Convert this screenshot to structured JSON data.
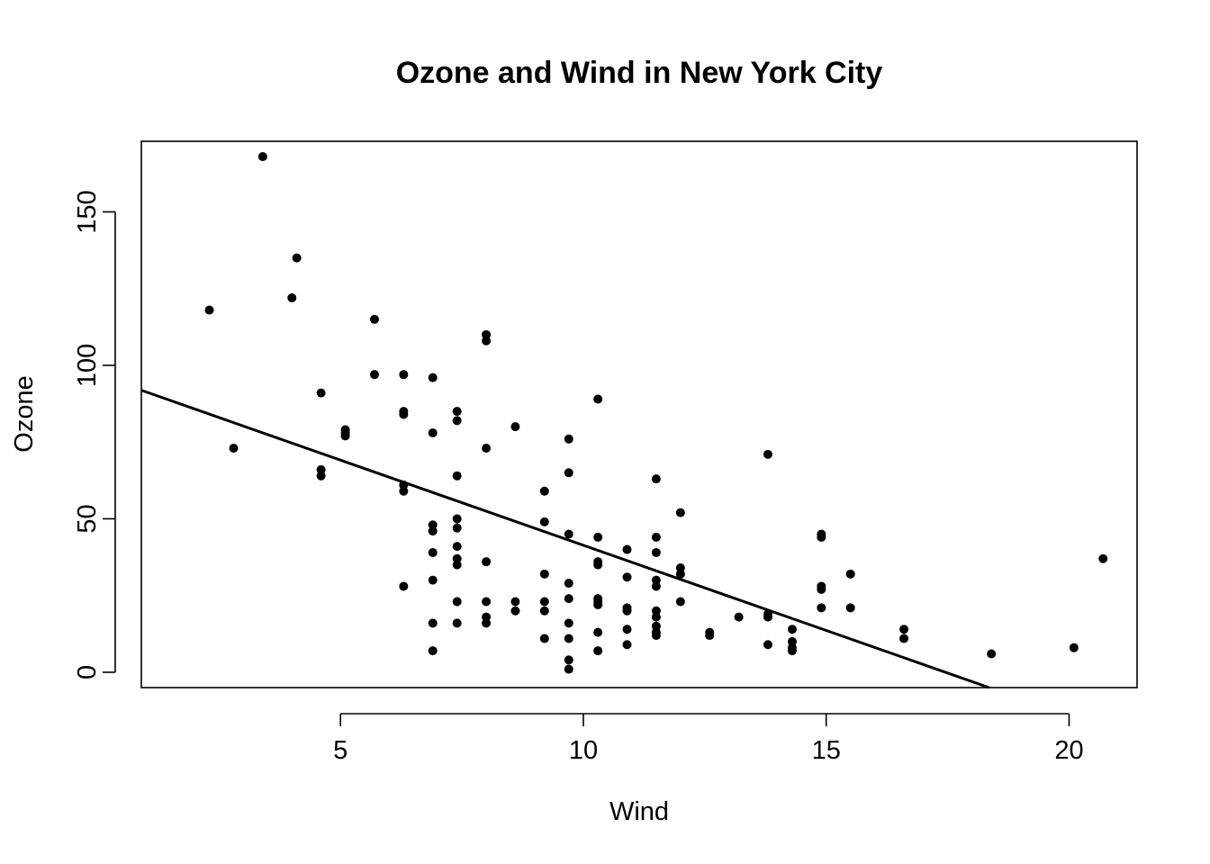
{
  "chart_data": {
    "type": "scatter",
    "title": "Ozone and Wind in New York City",
    "xlabel": "Wind",
    "ylabel": "Ozone",
    "xlim": [
      0.9,
      21.4
    ],
    "ylim": [
      -5,
      173
    ],
    "xticks": [
      5,
      10,
      15,
      20
    ],
    "yticks": [
      0,
      50,
      100,
      150
    ],
    "grid": false,
    "legend": "none",
    "marker_color": "#000000",
    "points": [
      [
        2.3,
        118
      ],
      [
        2.8,
        73
      ],
      [
        3.4,
        168
      ],
      [
        4.0,
        122
      ],
      [
        4.1,
        135
      ],
      [
        4.6,
        91
      ],
      [
        4.6,
        66
      ],
      [
        4.6,
        64
      ],
      [
        5.1,
        79
      ],
      [
        5.1,
        78
      ],
      [
        5.1,
        77
      ],
      [
        5.7,
        115
      ],
      [
        5.7,
        97
      ],
      [
        6.3,
        97
      ],
      [
        6.3,
        85
      ],
      [
        6.3,
        84
      ],
      [
        6.3,
        61
      ],
      [
        6.3,
        59
      ],
      [
        6.3,
        28
      ],
      [
        6.9,
        96
      ],
      [
        6.9,
        78
      ],
      [
        6.9,
        48
      ],
      [
        6.9,
        46
      ],
      [
        6.9,
        39
      ],
      [
        6.9,
        30
      ],
      [
        6.9,
        16
      ],
      [
        6.9,
        7
      ],
      [
        7.4,
        85
      ],
      [
        7.4,
        82
      ],
      [
        7.4,
        64
      ],
      [
        7.4,
        50
      ],
      [
        7.4,
        47
      ],
      [
        7.4,
        41
      ],
      [
        7.4,
        37
      ],
      [
        7.4,
        35
      ],
      [
        7.4,
        23
      ],
      [
        7.4,
        16
      ],
      [
        8.0,
        110
      ],
      [
        8.0,
        108
      ],
      [
        8.0,
        73
      ],
      [
        8.0,
        36
      ],
      [
        8.0,
        23
      ],
      [
        8.0,
        18
      ],
      [
        8.0,
        16
      ],
      [
        8.6,
        80
      ],
      [
        8.6,
        23
      ],
      [
        8.6,
        20
      ],
      [
        9.2,
        59
      ],
      [
        9.2,
        49
      ],
      [
        9.2,
        32
      ],
      [
        9.2,
        23
      ],
      [
        9.2,
        20
      ],
      [
        9.2,
        11
      ],
      [
        9.7,
        76
      ],
      [
        9.7,
        65
      ],
      [
        9.7,
        45
      ],
      [
        9.7,
        29
      ],
      [
        9.7,
        24
      ],
      [
        9.7,
        16
      ],
      [
        9.7,
        11
      ],
      [
        9.7,
        4
      ],
      [
        9.7,
        1
      ],
      [
        10.3,
        89
      ],
      [
        10.3,
        44
      ],
      [
        10.3,
        36
      ],
      [
        10.3,
        35
      ],
      [
        10.3,
        24
      ],
      [
        10.3,
        23
      ],
      [
        10.3,
        22
      ],
      [
        10.3,
        13
      ],
      [
        10.3,
        7
      ],
      [
        10.9,
        40
      ],
      [
        10.9,
        31
      ],
      [
        10.9,
        21
      ],
      [
        10.9,
        20
      ],
      [
        10.9,
        14
      ],
      [
        10.9,
        9
      ],
      [
        11.5,
        63
      ],
      [
        11.5,
        44
      ],
      [
        11.5,
        39
      ],
      [
        11.5,
        30
      ],
      [
        11.5,
        28
      ],
      [
        11.5,
        20
      ],
      [
        11.5,
        18
      ],
      [
        11.5,
        15
      ],
      [
        11.5,
        13
      ],
      [
        11.5,
        12
      ],
      [
        12.0,
        52
      ],
      [
        12.0,
        34
      ],
      [
        12.0,
        32
      ],
      [
        12.0,
        23
      ],
      [
        12.6,
        13
      ],
      [
        12.6,
        12
      ],
      [
        13.2,
        18
      ],
      [
        13.8,
        71
      ],
      [
        13.8,
        19
      ],
      [
        13.8,
        18
      ],
      [
        13.8,
        9
      ],
      [
        14.3,
        14
      ],
      [
        14.3,
        10
      ],
      [
        14.3,
        8
      ],
      [
        14.3,
        7
      ],
      [
        14.9,
        45
      ],
      [
        14.9,
        44
      ],
      [
        14.9,
        28
      ],
      [
        14.9,
        27
      ],
      [
        14.9,
        21
      ],
      [
        15.5,
        32
      ],
      [
        15.5,
        21
      ],
      [
        16.6,
        14
      ],
      [
        16.6,
        11
      ],
      [
        18.4,
        6
      ],
      [
        20.1,
        8
      ],
      [
        20.7,
        37
      ]
    ],
    "regression_line": {
      "intercept": 96.87,
      "slope": -5.55
    }
  }
}
